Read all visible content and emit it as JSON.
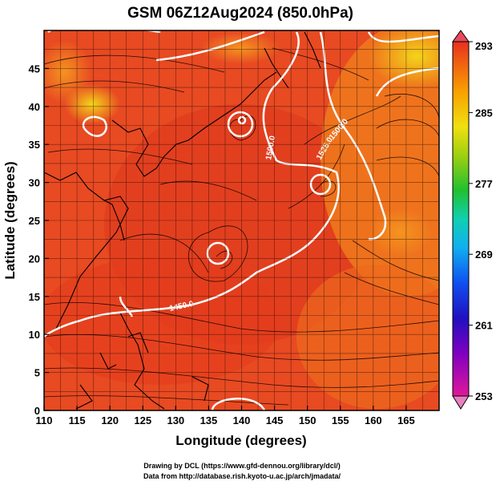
{
  "title": "GSM 06Z12Aug2024 (850.0hPa)",
  "xlabel": "Longitude (degrees)",
  "ylabel": "Latitude  (degrees)",
  "credits": [
    "Drawing by DCL (https://www.gfd-dennou.org/library/dcl/)",
    "Data from http://database.rish.kyoto-u.ac.jp/arch/jmadata/"
  ],
  "chart_data": {
    "type": "heatmap",
    "title": "GSM 06Z12Aug2024 (850.0hPa)",
    "xlabel": "Longitude (degrees)",
    "ylabel": "Latitude  (degrees)",
    "xlim": [
      110,
      170
    ],
    "ylim": [
      0,
      50
    ],
    "xticks": [
      110,
      115,
      120,
      125,
      130,
      135,
      140,
      145,
      150,
      155,
      160,
      165
    ],
    "yticks": [
      0,
      5,
      10,
      15,
      20,
      25,
      30,
      35,
      40,
      45
    ],
    "grid": true,
    "colorbar": {
      "min": 253,
      "max": 293,
      "ticks": [
        253,
        261,
        269,
        277,
        285,
        293
      ],
      "colors": [
        "#e0189a",
        "#b000c8",
        "#3010c8",
        "#1060f0",
        "#10b0f0",
        "#10d0a0",
        "#20c030",
        "#90d010",
        "#f0e010",
        "#f8a800",
        "#f06010",
        "#e83020"
      ]
    },
    "contour_labels": [
      "1500.0",
      "1525.0",
      "1500.0",
      "1450.0"
    ]
  },
  "colors": {
    "warm": "#e84a1e",
    "hot": "#e0381c",
    "cool": "#f07818",
    "yellow": "#f0c818",
    "contour": "#ffffff"
  }
}
